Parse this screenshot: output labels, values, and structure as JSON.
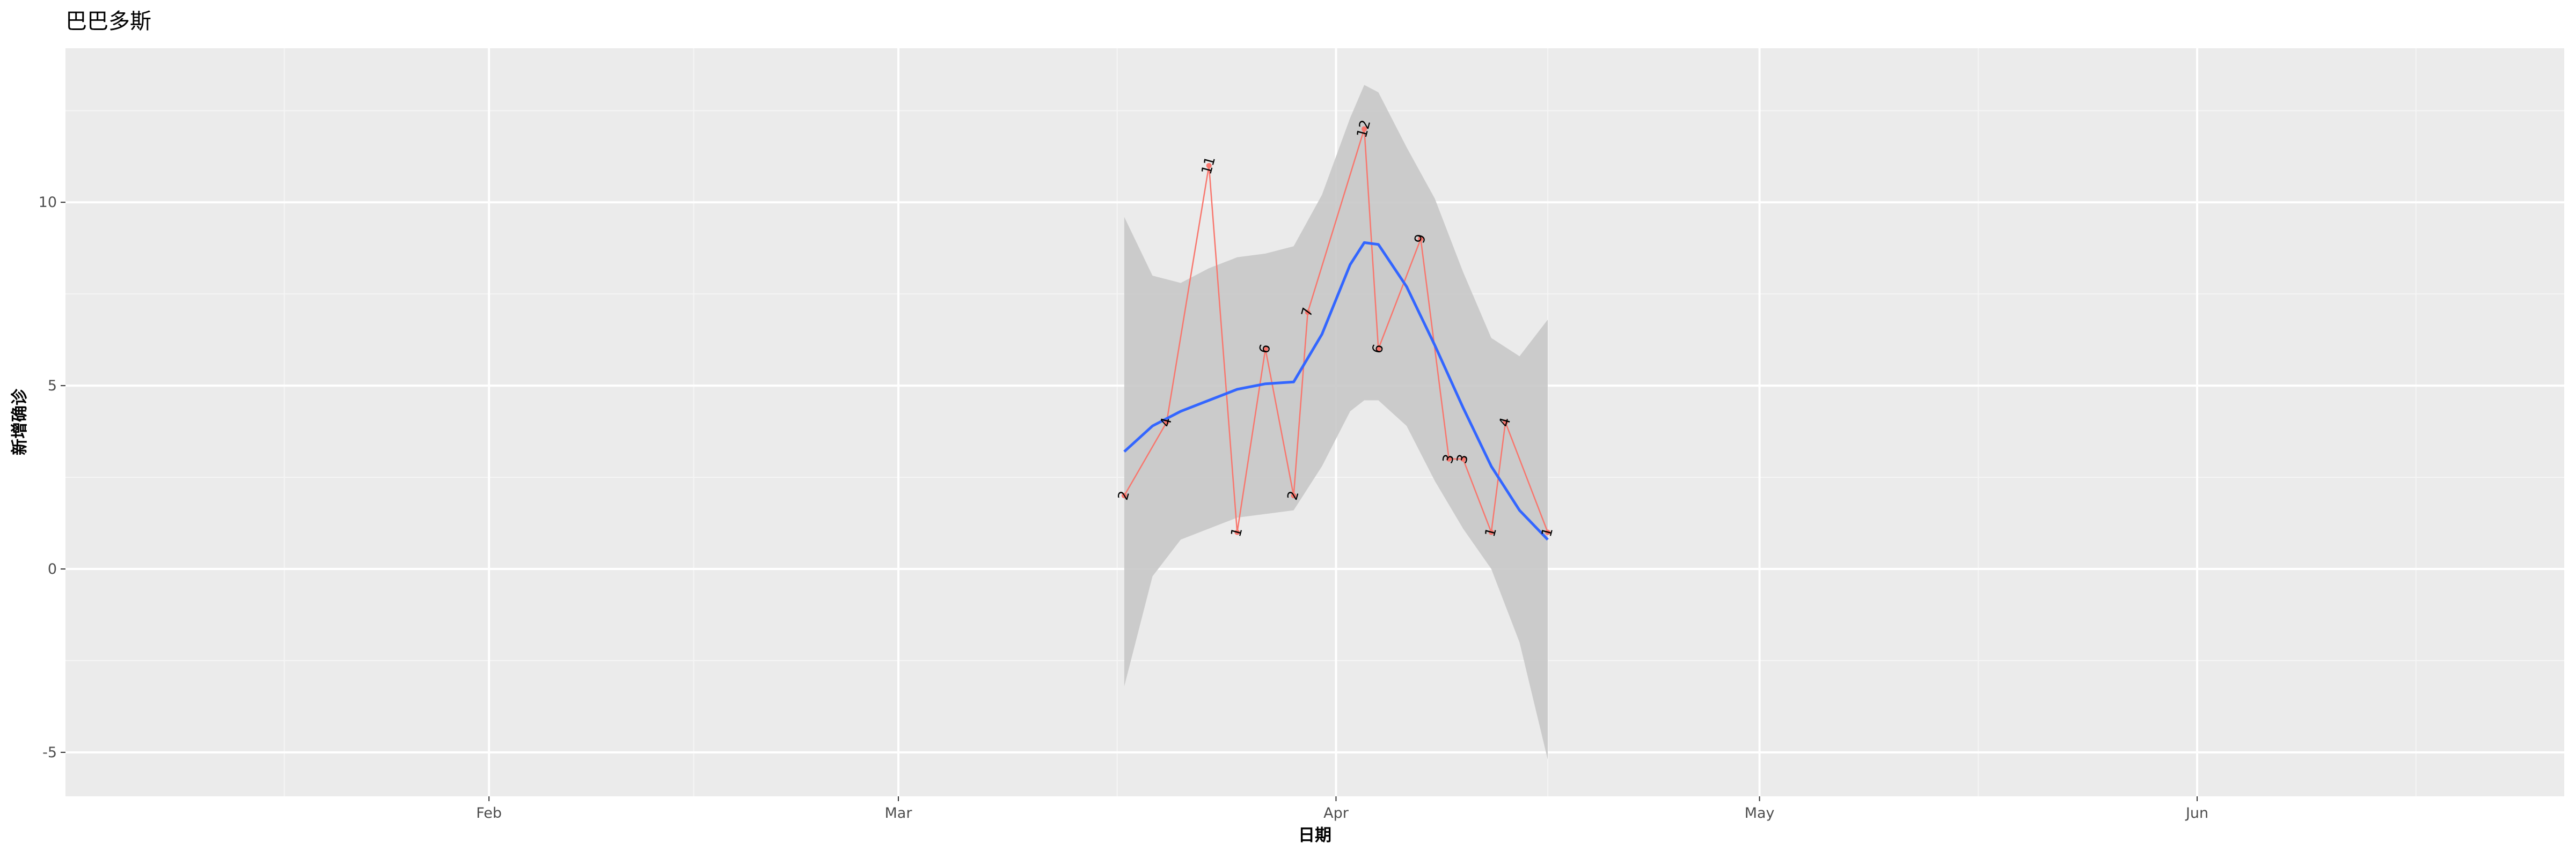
{
  "chart_data": {
    "type": "line",
    "title": "巴巴多斯",
    "xlabel": "日期",
    "ylabel": "新增确诊",
    "x_ticks": [
      "Feb",
      "Mar",
      "Apr",
      "May",
      "Jun"
    ],
    "y_ticks": [
      "-5",
      "0",
      "5",
      "10"
    ],
    "ylim": [
      -6.2,
      14.2
    ],
    "xlim": [
      "2020-01-02",
      "2020-06-27"
    ],
    "grid": true,
    "legend": "none",
    "series": [
      {
        "x": [
          "2020-03-17",
          "2020-03-20",
          "2020-03-23",
          "2020-03-25",
          "2020-03-27",
          "2020-03-29",
          "2020-03-30",
          "2020-04-03",
          "2020-04-04",
          "2020-04-07",
          "2020-04-09",
          "2020-04-10",
          "2020-04-12",
          "2020-04-13",
          "2020-04-16"
        ],
        "values": [
          2,
          4,
          11,
          1,
          6,
          2,
          7,
          12,
          6,
          9,
          3,
          3,
          1,
          4,
          1
        ],
        "labels": [
          "2",
          "4",
          "11",
          "1",
          "6",
          "2",
          "7",
          "12",
          "6",
          "9",
          "3",
          "3",
          "1",
          "4",
          "1"
        ],
        "color": "#f8766d"
      }
    ],
    "smooth": {
      "color": "#3366ff",
      "band_color": "#c8c8c8",
      "x": [
        "2020-03-17",
        "2020-03-19",
        "2020-03-21",
        "2020-03-23",
        "2020-03-25",
        "2020-03-27",
        "2020-03-29",
        "2020-03-31",
        "2020-04-02",
        "2020-04-03",
        "2020-04-04",
        "2020-04-06",
        "2020-04-08",
        "2020-04-10",
        "2020-04-12",
        "2020-04-14",
        "2020-04-16"
      ],
      "fit": [
        3.2,
        3.9,
        4.3,
        4.6,
        4.9,
        5.05,
        5.1,
        6.4,
        8.3,
        8.9,
        8.85,
        7.7,
        6.1,
        4.4,
        2.8,
        1.6,
        0.8
      ],
      "upper": [
        9.6,
        8.0,
        7.8,
        8.2,
        8.5,
        8.6,
        8.8,
        10.2,
        12.3,
        13.2,
        13.0,
        11.5,
        10.1,
        8.1,
        6.3,
        5.8,
        6.8
      ],
      "lower": [
        -3.2,
        -0.2,
        0.8,
        1.1,
        1.4,
        1.5,
        1.6,
        2.8,
        4.3,
        4.6,
        4.6,
        3.9,
        2.4,
        1.1,
        0.0,
        -2.0,
        -5.2
      ]
    }
  }
}
